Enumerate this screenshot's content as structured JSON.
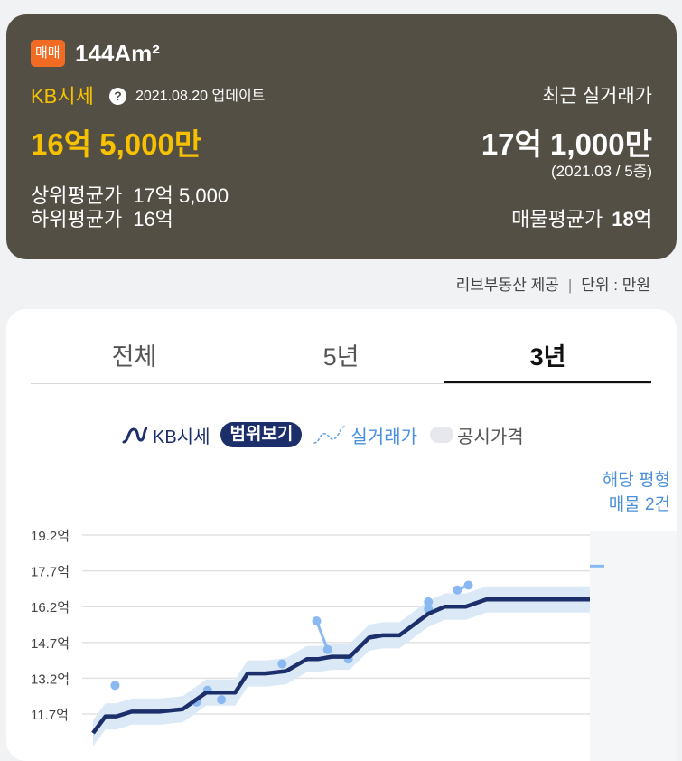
{
  "summary": {
    "trade_type": "매매",
    "area": "144Am²",
    "kb_label": "KB시세",
    "help_icon_glyph": "?",
    "updated": "2021.08.20 업데이트",
    "kb_price": "16억 5,000만",
    "upper_avg_label": "상위평균가",
    "upper_avg_value": "17억 5,000",
    "lower_avg_label": "하위평균가",
    "lower_avg_value": "16억",
    "recent_label": "최근 실거래가",
    "recent_price": "17억 1,000만",
    "recent_info": "(2021.03 / 5층)",
    "listing_avg_label": "매물평균가",
    "listing_avg_value": "18억"
  },
  "source": {
    "provider": "리브부동산 제공",
    "separator": "|",
    "unit": "단위 : 만원"
  },
  "tabs": [
    {
      "label": "전체",
      "active": false
    },
    {
      "label": "5년",
      "active": false
    },
    {
      "label": "3년",
      "active": true
    }
  ],
  "legend": {
    "kb": "KB시세",
    "range_button": "범위보기",
    "actual": "실거래가",
    "public": "공시가격"
  },
  "listing_count": {
    "line1": "해당 평형",
    "line2": "매물 2건"
  },
  "colors": {
    "kb_line": "#1d2f6b",
    "range_band": "#dbe9f6",
    "actual": "#8ab9f2",
    "accent": "#f7c100",
    "badge": "#f26b22"
  },
  "chart_data": {
    "type": "line",
    "y_ticks": [
      "19.2억",
      "17.7억",
      "16.2억",
      "14.7억",
      "13.2억",
      "11.7억"
    ],
    "y_tick_values": [
      19.2,
      17.7,
      16.2,
      14.7,
      13.2,
      11.7
    ],
    "ylim": [
      11.1,
      19.6
    ],
    "xlim": [
      0,
      36
    ],
    "grid": true,
    "series": [
      {
        "name": "KB시세",
        "x": [
          0,
          0.9,
          1.7,
          2.8,
          3.8,
          4.8,
          6.5,
          8.2,
          9.5,
          10.3,
          11.2,
          12.5,
          14.0,
          15.5,
          16.3,
          17.3,
          18.6,
          20.0,
          21.0,
          22.2,
          24.3,
          25.5,
          27.0,
          28.5,
          29.7,
          31.1,
          32.5,
          33.4,
          35.0,
          36.0
        ],
        "values": [
          10.9,
          11.6,
          11.6,
          11.8,
          11.8,
          11.8,
          11.9,
          12.6,
          12.6,
          12.6,
          13.4,
          13.4,
          13.5,
          14.0,
          14.0,
          14.1,
          14.1,
          14.9,
          15.0,
          15.0,
          15.9,
          16.2,
          16.2,
          16.5,
          16.5,
          16.5,
          16.5,
          16.5,
          16.5,
          16.5
        ]
      },
      {
        "name": "실거래가",
        "points": [
          [
            1.6,
            12.9
          ],
          [
            7.5,
            12.2
          ],
          [
            8.3,
            12.7
          ],
          [
            9.3,
            12.3
          ],
          [
            13.7,
            13.8
          ],
          [
            16.2,
            15.6
          ],
          [
            17.0,
            14.4
          ],
          [
            18.5,
            14.0
          ],
          [
            24.3,
            16.4
          ],
          [
            24.3,
            16.1
          ],
          [
            26.4,
            16.9
          ],
          [
            27.2,
            17.1
          ]
        ]
      }
    ],
    "band": {
      "upper_offset": 0.55,
      "lower_offset": 0.55
    },
    "listing_marker_value": 17.9
  }
}
